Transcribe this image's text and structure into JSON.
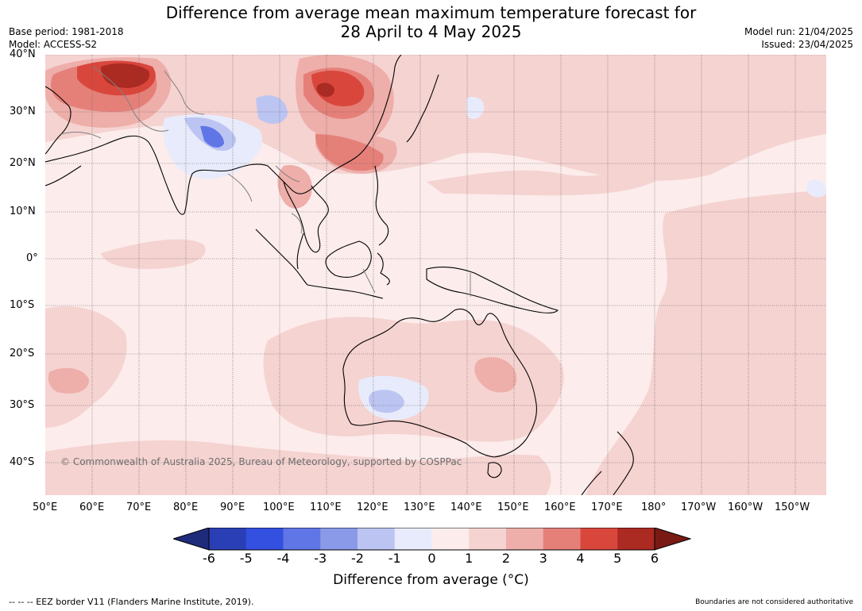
{
  "title_line1": "Difference from average mean maximum temperature forecast for",
  "title_line2": "28 April to 4 May 2025",
  "base_period": "Base period: 1981-2018",
  "model": "Model: ACCESS-S2",
  "model_run": "Model run: 21/04/2025",
  "issued": "Issued: 23/04/2025",
  "lat_labels": [
    "40°N",
    "30°N",
    "20°N",
    "10°N",
    "0°",
    "10°S",
    "20°S",
    "30°S",
    "40°S"
  ],
  "lon_labels": [
    "50°E",
    "60°E",
    "70°E",
    "80°E",
    "90°E",
    "100°E",
    "110°E",
    "120°E",
    "130°E",
    "140°E",
    "150°E",
    "160°E",
    "170°E",
    "180°",
    "170°W",
    "160°W",
    "150°W"
  ],
  "colorbar": {
    "ticks": [
      "-6",
      "-5",
      "-4",
      "-3",
      "-2",
      "-1",
      "0",
      "1",
      "2",
      "3",
      "4",
      "5",
      "6"
    ],
    "colors": [
      "#1e2a7a",
      "#2a3fb5",
      "#3350e0",
      "#6076e6",
      "#8a9ae8",
      "#bcc5f2",
      "#e8ebfb",
      "#fcecec",
      "#f5d3d1",
      "#eeaeaa",
      "#e58079",
      "#d9473c",
      "#ab2a22",
      "#7a1a14"
    ],
    "title": "Difference from average (°C)"
  },
  "watermark": "© Commonwealth of Australia 2025, Bureau of Meteorology, supported by COSPPac",
  "footer_left": "--  --  -- EEZ border V11 (Flanders Marine Institute, 2019).",
  "footer_right": "Boundaries are not considered authoritative"
}
